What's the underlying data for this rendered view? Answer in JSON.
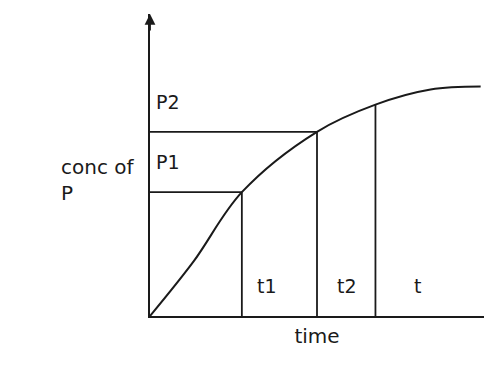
{
  "chart_data": {
    "type": "line",
    "x_label": "time",
    "y_label": "conc of P",
    "x": [
      0,
      1.3,
      2.75,
      5.0,
      6.75,
      8.4,
      9.9
    ],
    "values": [
      0,
      1.8,
      4.1,
      6.1,
      7.0,
      7.5,
      7.6
    ],
    "color": "#1a1a1a",
    "xlim": [
      0,
      10
    ],
    "ylim": [
      0,
      10
    ],
    "xticks": [],
    "yticks": [],
    "tick_labels": false,
    "grid": false,
    "vertical_lines": [
      {
        "x": 2.75,
        "y": 4.1
      },
      {
        "x": 5.0,
        "y": 6.1
      },
      {
        "x": 6.75,
        "y": 7.0
      }
    ],
    "horizontal_lines": [
      {
        "x": 2.75,
        "y": 4.1
      },
      {
        "x": 5.0,
        "y": 6.1
      }
    ],
    "annotations": [
      {
        "text": "P2",
        "x": 0.55,
        "y": 7.1
      },
      {
        "text": "P1",
        "x": 0.55,
        "y": 5.1
      },
      {
        "text": "t1",
        "x": 3.5,
        "y": 1.0
      },
      {
        "text": "t2",
        "x": 5.9,
        "y": 1.0
      },
      {
        "text": "t",
        "x": 8.0,
        "y": 1.0
      }
    ]
  }
}
